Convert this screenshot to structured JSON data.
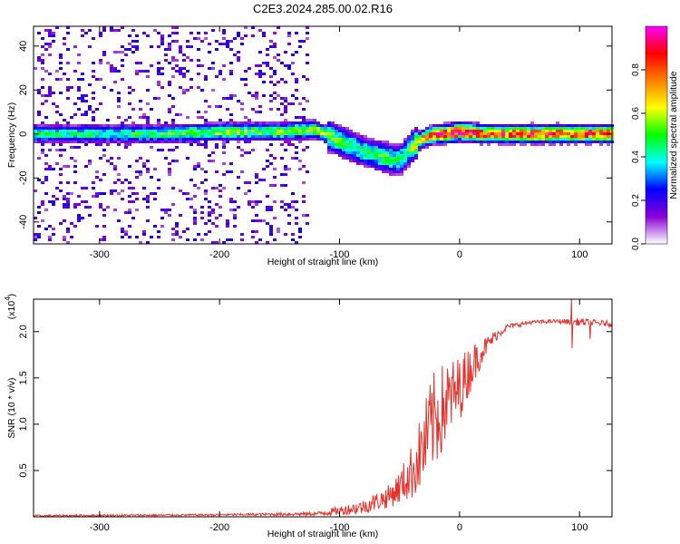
{
  "title": "C2E3.2024.285.00.02.R16",
  "chart_data": [
    {
      "type": "heatmap",
      "xlabel": "Height of straight line (km)",
      "ylabel": "Frequency (Hz)",
      "xlim": [
        -355,
        127
      ],
      "ylim": [
        -50,
        49
      ],
      "xticks": [
        {
          "value": -300,
          "label": "-300"
        },
        {
          "value": -200,
          "label": "-200"
        },
        {
          "value": -100,
          "label": "-100"
        },
        {
          "value": 0,
          "label": "0"
        },
        {
          "value": 100,
          "label": "100"
        }
      ],
      "yticks": [
        {
          "value": -40,
          "label": "-40"
        },
        {
          "value": -20,
          "label": "-20"
        },
        {
          "value": 0,
          "label": "0"
        },
        {
          "value": 20,
          "label": "20"
        },
        {
          "value": 40,
          "label": "40"
        }
      ],
      "colorbar": {
        "label": "Normalized spectral amplitude",
        "range": [
          0,
          1
        ],
        "ticks": [
          {
            "value": 0.0,
            "label": "0.0"
          },
          {
            "value": 0.2,
            "label": "0.2"
          },
          {
            "value": 0.4,
            "label": "0.4"
          },
          {
            "value": 0.6,
            "label": "0.6"
          },
          {
            "value": 0.8,
            "label": "0.8"
          }
        ],
        "colors": [
          "#ffffff",
          "#8a00d8",
          "#0000ff",
          "#00ffff",
          "#00ff00",
          "#ffff00",
          "#ff8000",
          "#ff0000",
          "#ff00ff"
        ]
      },
      "ridge": {
        "x": [
          -355,
          -300,
          -250,
          -200,
          -150,
          -120,
          -100,
          -80,
          -60,
          -50,
          -40,
          -30,
          -20,
          -10,
          0,
          20,
          50,
          127
        ],
        "freq": [
          0,
          0,
          0,
          1,
          1,
          2,
          -3,
          -8,
          -11,
          -12,
          -6,
          -2,
          0,
          0,
          1,
          0,
          0,
          0
        ],
        "peak": [
          0.45,
          0.45,
          0.5,
          0.55,
          0.55,
          0.6,
          0.5,
          0.45,
          0.5,
          0.45,
          0.55,
          0.75,
          0.9,
          0.95,
          1.0,
          0.85,
          0.85,
          0.85
        ]
      },
      "noise_region": {
        "x": [
          -355,
          -125
        ],
        "level": 0.2
      }
    },
    {
      "type": "line",
      "xlabel": "Height of straight line (km)",
      "ylabel": "SNR (10 * v/v)",
      "multiplier": "(x10",
      "multiplier_exp": "4",
      "xlim": [
        -355,
        127
      ],
      "ylim": [
        0,
        2.35
      ],
      "color": "#e8302a",
      "xticks": [
        {
          "value": -300,
          "label": "-300"
        },
        {
          "value": -200,
          "label": "-200"
        },
        {
          "value": -100,
          "label": "-100"
        },
        {
          "value": 0,
          "label": "0"
        },
        {
          "value": 100,
          "label": "100"
        }
      ],
      "yticks": [
        {
          "value": 0.5,
          "label": "0.5"
        },
        {
          "value": 1.0,
          "label": "1.0"
        },
        {
          "value": 1.5,
          "label": "1.5"
        },
        {
          "value": 2.0,
          "label": "2.0"
        }
      ],
      "envelope": {
        "x": [
          -355,
          -200,
          -120,
          -100,
          -80,
          -60,
          -50,
          -40,
          -30,
          -25,
          -20,
          -10,
          0,
          10,
          20,
          30,
          40,
          60,
          80,
          100,
          127
        ],
        "y": [
          0.01,
          0.02,
          0.03,
          0.06,
          0.1,
          0.2,
          0.3,
          0.45,
          0.7,
          0.9,
          1.0,
          1.2,
          1.35,
          1.6,
          1.8,
          1.95,
          2.05,
          2.1,
          2.11,
          2.1,
          2.08
        ],
        "noise": [
          0.01,
          0.01,
          0.02,
          0.05,
          0.08,
          0.12,
          0.18,
          0.3,
          0.45,
          0.5,
          0.55,
          0.45,
          0.35,
          0.25,
          0.12,
          0.06,
          0.03,
          0.02,
          0.02,
          0.04,
          0.03
        ]
      },
      "spikes": [
        {
          "x": 93,
          "y": 2.36
        },
        {
          "x": 94,
          "y": 1.82
        },
        {
          "x": 109,
          "y": 1.92
        }
      ]
    }
  ]
}
